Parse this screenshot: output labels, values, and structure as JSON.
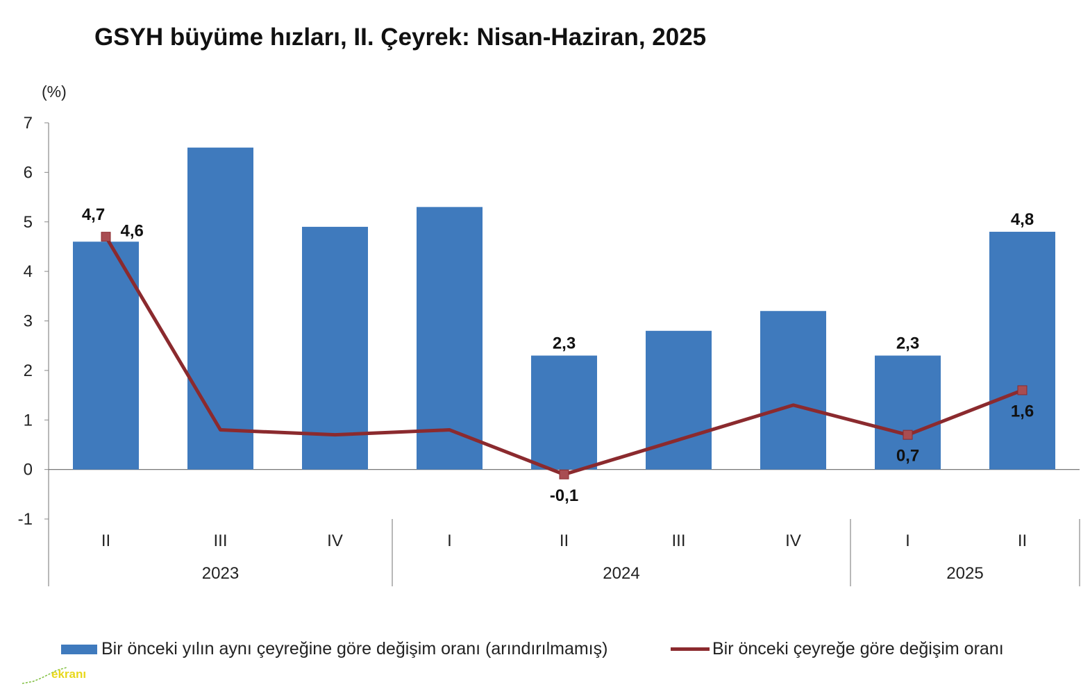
{
  "title": "GSYH büyüme hızları, II. Çeyrek: Nisan-Haziran, 2025",
  "chart_data": {
    "type": "bar",
    "unit_label": "(%)",
    "ylim": [
      -1,
      7
    ],
    "yticks": [
      "-1",
      "0",
      "1",
      "2",
      "3",
      "4",
      "5",
      "6",
      "7"
    ],
    "categories": [
      "II",
      "III",
      "IV",
      "I",
      "II",
      "III",
      "IV",
      "I",
      "II"
    ],
    "year_groups": [
      {
        "label": "2023",
        "count": 3
      },
      {
        "label": "2024",
        "count": 4
      },
      {
        "label": "2025",
        "count": 2
      }
    ],
    "series": [
      {
        "name": "Bir önceki yılın aynı çeyreğine göre değişim oranı (arındırılmamış)",
        "kind": "bar",
        "color": "#3f7abd",
        "values": [
          4.6,
          6.5,
          4.9,
          5.3,
          2.3,
          2.8,
          3.2,
          2.3,
          4.8
        ],
        "data_labels": [
          "4,6",
          "",
          "",
          "",
          "2,3",
          "",
          "",
          "2,3",
          "4,8"
        ]
      },
      {
        "name": "Bir önceki çeyreğe göre değişim oranı",
        "kind": "line",
        "color": "#8b2a2e",
        "values": [
          4.7,
          0.8,
          0.7,
          0.8,
          -0.1,
          0.6,
          1.3,
          0.7,
          1.6
        ],
        "data_labels": [
          "4,7",
          "",
          "",
          "",
          "-0,1",
          "",
          "",
          "0,7",
          "1,6"
        ]
      }
    ],
    "grid": false,
    "legend_position": "bottom"
  },
  "watermark": {
    "text": "ekranı"
  }
}
